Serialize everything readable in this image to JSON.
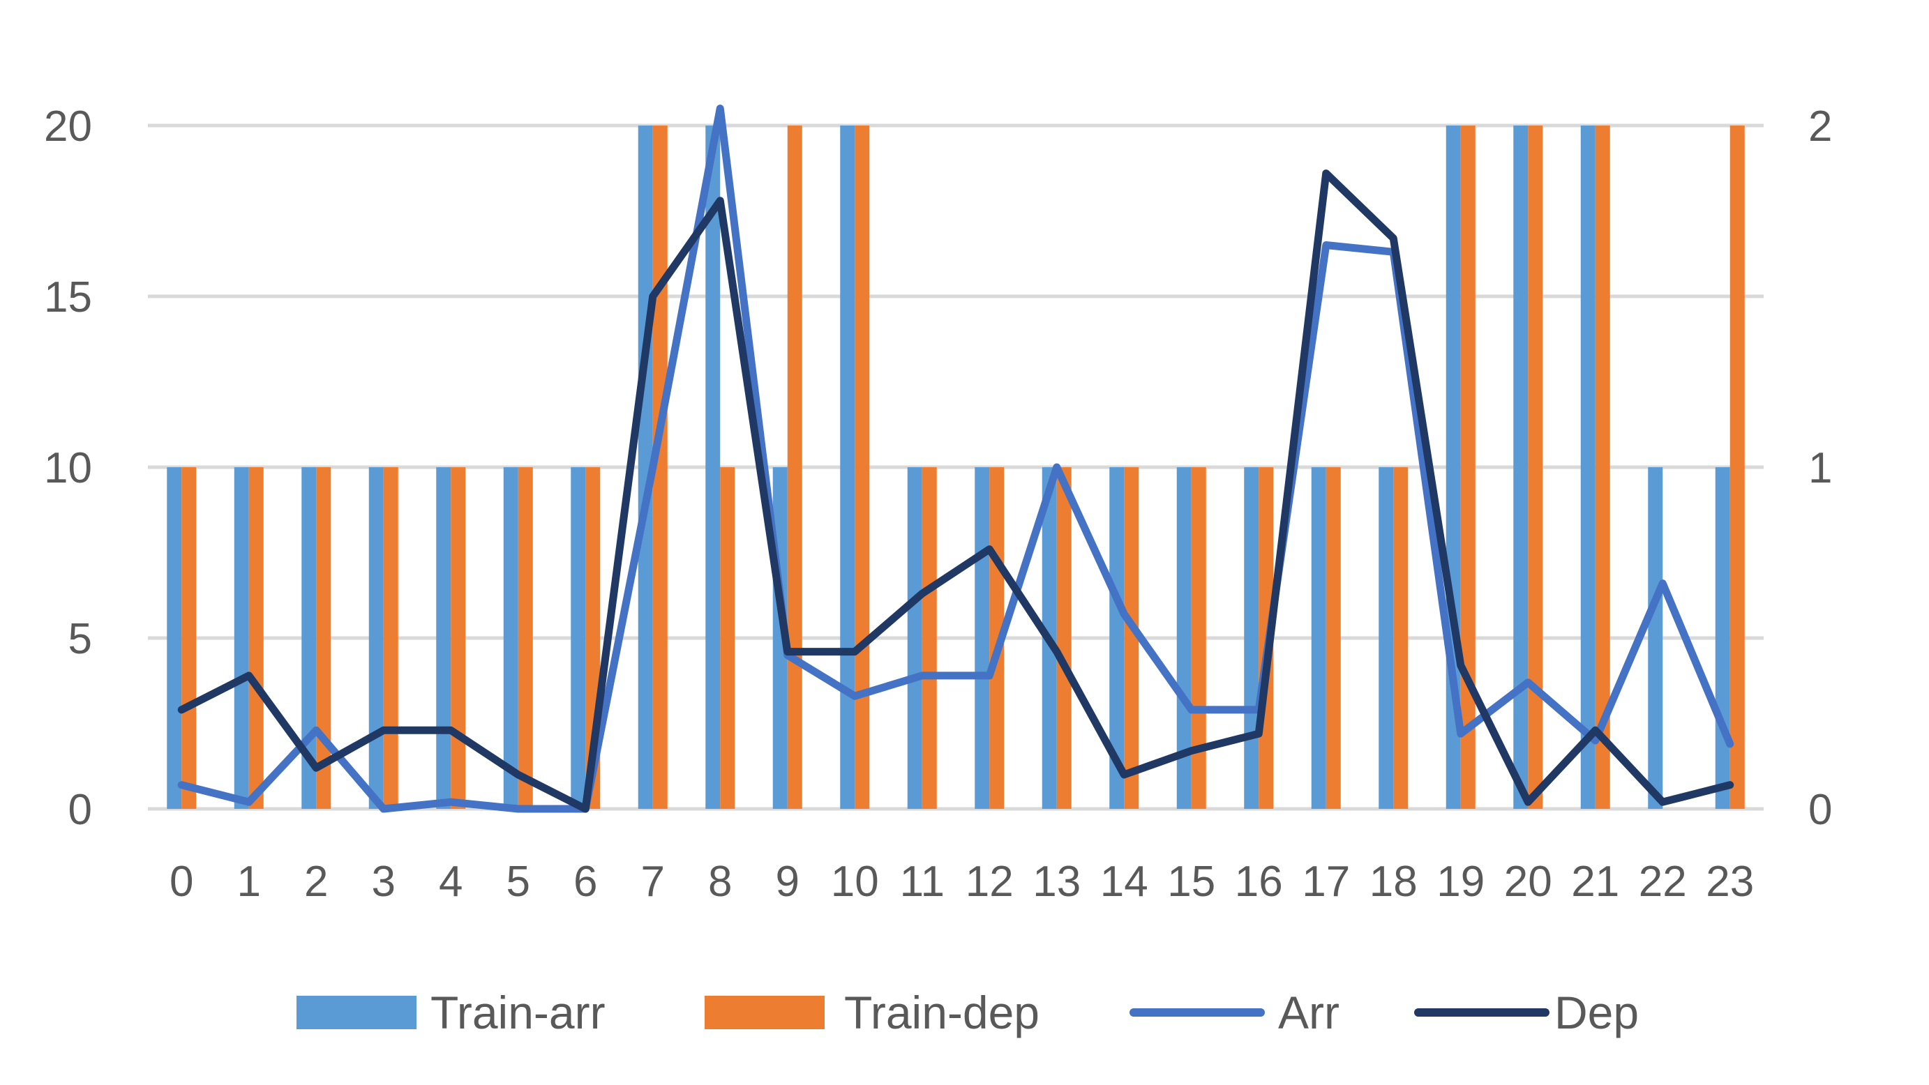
{
  "chart_data": {
    "type": "bar",
    "categories": [
      "0",
      "1",
      "2",
      "3",
      "4",
      "5",
      "6",
      "7",
      "8",
      "9",
      "10",
      "11",
      "12",
      "13",
      "14",
      "15",
      "16",
      "17",
      "18",
      "19",
      "20",
      "21",
      "22",
      "23"
    ],
    "y_left": {
      "min": 0,
      "max": 20,
      "ticks": [
        "0",
        "5",
        "10",
        "15",
        "20"
      ]
    },
    "y_right": {
      "min": 0,
      "max": 2,
      "ticks": [
        "0",
        "1",
        "2"
      ]
    },
    "grid": true,
    "legend_position": "bottom",
    "series": [
      {
        "name": "Train-arr",
        "type": "bar",
        "axis": "left",
        "color": "#5b9bd5",
        "values": [
          10,
          10,
          10,
          10,
          10,
          10,
          10,
          20,
          20,
          10,
          20,
          10,
          10,
          10,
          10,
          10,
          10,
          10,
          10,
          20,
          20,
          20,
          10,
          10
        ]
      },
      {
        "name": "Train-dep",
        "type": "bar",
        "axis": "left",
        "color": "#ed7d31",
        "values": [
          10,
          10,
          10,
          10,
          10,
          10,
          10,
          20,
          10,
          20,
          20,
          10,
          10,
          10,
          10,
          10,
          10,
          10,
          10,
          20,
          20,
          20,
          0,
          20
        ]
      },
      {
        "name": "Arr",
        "type": "line",
        "axis": "right",
        "color": "#4472c4",
        "values": [
          0.07,
          0.02,
          0.23,
          0.0,
          0.02,
          0.0,
          0.0,
          1.0,
          2.05,
          0.45,
          0.33,
          0.39,
          0.39,
          1.0,
          0.57,
          0.29,
          0.29,
          1.65,
          1.63,
          0.22,
          0.37,
          0.2,
          0.66,
          0.19
        ]
      },
      {
        "name": "Dep",
        "type": "line",
        "axis": "right",
        "color": "#203864",
        "values": [
          0.29,
          0.39,
          0.12,
          0.23,
          0.23,
          0.1,
          0.0,
          1.5,
          1.78,
          0.46,
          0.46,
          0.63,
          0.76,
          0.46,
          0.1,
          0.17,
          0.22,
          1.86,
          1.67,
          0.42,
          0.02,
          0.23,
          0.02,
          0.07
        ]
      }
    ]
  }
}
